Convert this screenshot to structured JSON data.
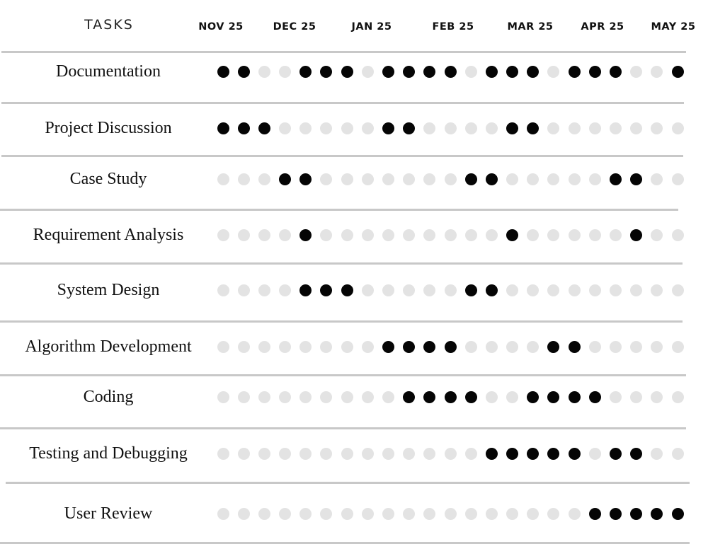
{
  "chart_data": {
    "type": "scatter",
    "columns_header": "TASKS",
    "months": [
      "NOV 25",
      "DEC 25",
      "JAN 25",
      "FEB 25",
      "MAR 25",
      "APR 25",
      "MAY 25"
    ],
    "weeks_per_row": 23,
    "tasks": [
      {
        "name": "Documentation",
        "active_weeks": [
          1,
          2,
          5,
          6,
          7,
          9,
          10,
          11,
          12,
          14,
          15,
          16,
          18,
          19,
          20,
          23
        ]
      },
      {
        "name": "Project Discussion",
        "active_weeks": [
          1,
          2,
          3,
          9,
          10,
          15,
          16
        ]
      },
      {
        "name": "Case Study",
        "active_weeks": [
          4,
          5,
          13,
          14,
          20,
          21
        ]
      },
      {
        "name": "Requirement Analysis",
        "active_weeks": [
          5,
          15,
          21
        ]
      },
      {
        "name": "System Design",
        "active_weeks": [
          5,
          6,
          7,
          13,
          14
        ]
      },
      {
        "name": "Algorithm Development",
        "active_weeks": [
          9,
          10,
          11,
          12,
          17,
          18
        ]
      },
      {
        "name": "Coding",
        "active_weeks": [
          10,
          11,
          12,
          13,
          16,
          17,
          18,
          19
        ]
      },
      {
        "name": "Testing and Debugging",
        "active_weeks": [
          14,
          15,
          16,
          17,
          18,
          20,
          21
        ]
      },
      {
        "name": "User Review",
        "active_weeks": [
          19,
          20,
          21,
          22,
          23
        ]
      }
    ],
    "colors": {
      "active": "#050505",
      "inactive": "#e3e3e3",
      "rule": "#c8c8c8"
    }
  }
}
